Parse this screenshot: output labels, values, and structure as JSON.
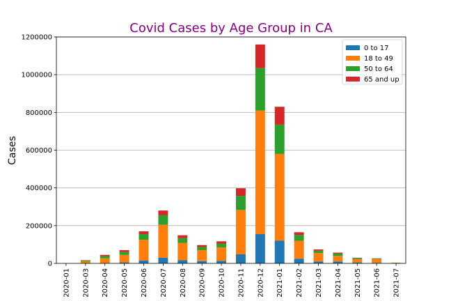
{
  "chart_data": {
    "type": "bar",
    "stacked": true,
    "title": "Covid Cases by Age Group in CA",
    "xlabel": "",
    "ylabel": "Cases",
    "ylim": [
      0,
      1200000
    ],
    "yticks": [
      0,
      200000,
      400000,
      600000,
      800000,
      1000000,
      1200000
    ],
    "grid": "horizontal",
    "legend_position": "top-right",
    "categories": [
      "2020-01",
      "2020-03",
      "2020-04",
      "2020-05",
      "2020-06",
      "2020-07",
      "2020-08",
      "2020-09",
      "2020-10",
      "2020-11",
      "2020-12",
      "2021-01",
      "2021-02",
      "2021-03",
      "2021-04",
      "2021-05",
      "2021-06",
      "2021-07"
    ],
    "series": [
      {
        "name": "0 to 17",
        "color": "#1f77b4",
        "values": [
          0,
          1000,
          2000,
          5000,
          15000,
          30000,
          17000,
          12000,
          13000,
          48000,
          155000,
          120000,
          25000,
          10000,
          10000,
          5000,
          3000,
          500
        ]
      },
      {
        "name": "18 to 49",
        "color": "#ff7f0e",
        "values": [
          0,
          10000,
          25000,
          40000,
          110000,
          175000,
          92000,
          58000,
          72000,
          235000,
          655000,
          460000,
          95000,
          45000,
          30000,
          18000,
          20000,
          2500
        ]
      },
      {
        "name": "50 to 64",
        "color": "#2ca02c",
        "values": [
          0,
          5000,
          12000,
          15000,
          30000,
          50000,
          25000,
          17000,
          20000,
          75000,
          225000,
          155000,
          30000,
          12000,
          12000,
          5000,
          3000,
          500
        ]
      },
      {
        "name": "65 and up",
        "color": "#d62728",
        "values": [
          0,
          1000,
          6000,
          10000,
          15000,
          25000,
          15000,
          10000,
          12000,
          40000,
          125000,
          95000,
          15000,
          7000,
          5000,
          2000,
          1000,
          300
        ]
      }
    ]
  }
}
